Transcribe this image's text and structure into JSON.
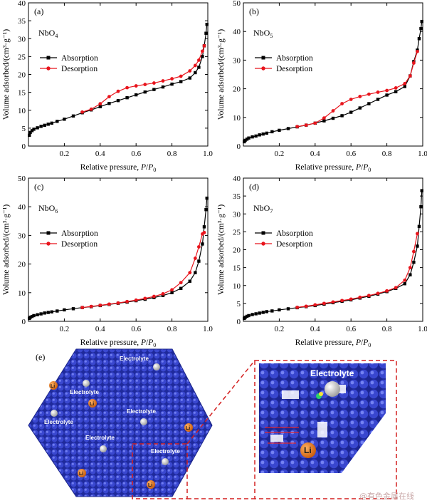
{
  "chart_data": [
    {
      "type": "line",
      "panel": "(a)",
      "label_base": "NbO",
      "label_sub": "4",
      "xlabel_prefix": "Relative pressure, ",
      "xlabel_var": "P",
      "xlabel_sep": "/",
      "xlabel_var2": "P",
      "xlabel_sub": "0",
      "ylabel": "Volume adsorbed/(cm³·g⁻¹)",
      "xlim": [
        0,
        1
      ],
      "ylim": [
        0,
        40
      ],
      "xticks": [
        "0.2",
        "0.4",
        "0.6",
        "0.8",
        "1.0"
      ],
      "yticks": [
        "0",
        "5",
        "10",
        "15",
        "20",
        "25",
        "30",
        "35",
        "40"
      ],
      "legend_position": "middle-left",
      "series": [
        {
          "name": "Absorption",
          "color": "#000000",
          "marker": "square",
          "x": [
            0.005,
            0.01,
            0.02,
            0.03,
            0.05,
            0.07,
            0.09,
            0.11,
            0.13,
            0.16,
            0.2,
            0.25,
            0.3,
            0.35,
            0.4,
            0.45,
            0.5,
            0.55,
            0.6,
            0.65,
            0.7,
            0.75,
            0.8,
            0.85,
            0.9,
            0.93,
            0.95,
            0.97,
            0.98,
            0.99,
            0.995
          ],
          "y": [
            3.0,
            3.8,
            4.3,
            4.7,
            5.1,
            5.5,
            5.8,
            6.1,
            6.4,
            6.9,
            7.5,
            8.4,
            9.3,
            10.1,
            11.0,
            11.9,
            12.7,
            13.5,
            14.3,
            15.1,
            15.8,
            16.5,
            17.3,
            18.0,
            19.0,
            20.5,
            22.0,
            25.0,
            28.0,
            31.5,
            34.0
          ]
        },
        {
          "name": "Desorption",
          "color": "#e8141c",
          "marker": "circle",
          "x": [
            0.3,
            0.35,
            0.4,
            0.45,
            0.5,
            0.55,
            0.6,
            0.65,
            0.7,
            0.75,
            0.8,
            0.85,
            0.9,
            0.93,
            0.95,
            0.97,
            0.98
          ],
          "y": [
            9.5,
            10.3,
            11.8,
            13.8,
            15.3,
            16.3,
            16.8,
            17.2,
            17.6,
            18.2,
            18.8,
            19.5,
            21.0,
            22.5,
            24.0,
            26.5,
            28.0
          ]
        }
      ]
    },
    {
      "type": "line",
      "panel": "(b)",
      "label_base": "NbO",
      "label_sub": "5",
      "xlabel_prefix": "Relative pressure, ",
      "xlabel_var": "P",
      "xlabel_sep": "/",
      "xlabel_var2": "P",
      "xlabel_sub": "0",
      "ylabel": "Volume adsorbed/(cm³·g⁻¹)",
      "xlim": [
        0,
        1
      ],
      "ylim": [
        0,
        50
      ],
      "xticks": [
        "0.2",
        "0.4",
        "0.6",
        "0.8",
        "1.0"
      ],
      "yticks": [
        "0",
        "10",
        "20",
        "30",
        "40",
        "50"
      ],
      "legend_position": "middle-left",
      "series": [
        {
          "name": "Absorption",
          "color": "#000000",
          "marker": "square",
          "x": [
            0.005,
            0.01,
            0.02,
            0.03,
            0.05,
            0.07,
            0.09,
            0.11,
            0.13,
            0.16,
            0.2,
            0.25,
            0.3,
            0.35,
            0.4,
            0.45,
            0.5,
            0.55,
            0.6,
            0.65,
            0.7,
            0.75,
            0.8,
            0.85,
            0.9,
            0.93,
            0.95,
            0.97,
            0.98,
            0.99,
            0.995
          ],
          "y": [
            1.5,
            2.0,
            2.4,
            2.8,
            3.2,
            3.5,
            3.9,
            4.2,
            4.5,
            5.0,
            5.5,
            6.1,
            6.7,
            7.3,
            8.0,
            8.8,
            9.7,
            10.6,
            11.8,
            13.3,
            14.8,
            16.3,
            17.8,
            19.0,
            20.8,
            24.5,
            29.5,
            33.5,
            37.5,
            41.0,
            43.5
          ]
        },
        {
          "name": "Desorption",
          "color": "#e8141c",
          "marker": "circle",
          "x": [
            0.3,
            0.35,
            0.4,
            0.45,
            0.5,
            0.55,
            0.6,
            0.65,
            0.7,
            0.75,
            0.8,
            0.85,
            0.9,
            0.93,
            0.95,
            0.97
          ],
          "y": [
            6.8,
            7.3,
            8.0,
            9.8,
            12.3,
            14.8,
            16.3,
            17.3,
            18.1,
            18.8,
            19.4,
            20.3,
            21.8,
            24.5,
            29.0,
            33.0
          ]
        }
      ]
    },
    {
      "type": "line",
      "panel": "(c)",
      "label_base": "NbO",
      "label_sub": "6",
      "xlabel_prefix": "Relative pressure, ",
      "xlabel_var": "P",
      "xlabel_sep": "/",
      "xlabel_var2": "P",
      "xlabel_sub": "0",
      "ylabel": "Volume adsorbed/(cm³·g⁻¹)",
      "xlim": [
        0,
        1
      ],
      "ylim": [
        0,
        50
      ],
      "xticks": [
        "0.2",
        "0.4",
        "0.6",
        "0.8",
        "1.0"
      ],
      "yticks": [
        "0",
        "10",
        "20",
        "30",
        "40",
        "50"
      ],
      "legend_position": "middle-left",
      "series": [
        {
          "name": "Absorption",
          "color": "#000000",
          "marker": "square",
          "x": [
            0.005,
            0.01,
            0.02,
            0.03,
            0.05,
            0.07,
            0.09,
            0.11,
            0.13,
            0.16,
            0.2,
            0.25,
            0.3,
            0.35,
            0.4,
            0.45,
            0.5,
            0.55,
            0.6,
            0.65,
            0.7,
            0.75,
            0.8,
            0.85,
            0.9,
            0.93,
            0.95,
            0.97,
            0.98,
            0.99,
            0.995
          ],
          "y": [
            1.0,
            1.4,
            1.7,
            2.0,
            2.3,
            2.6,
            2.9,
            3.1,
            3.3,
            3.6,
            4.0,
            4.4,
            4.8,
            5.1,
            5.5,
            5.9,
            6.3,
            6.7,
            7.2,
            7.7,
            8.3,
            9.0,
            10.0,
            11.5,
            14.0,
            17.0,
            21.0,
            27.0,
            33.0,
            39.0,
            43.0
          ]
        },
        {
          "name": "Desorption",
          "color": "#e8141c",
          "marker": "circle",
          "x": [
            0.3,
            0.35,
            0.4,
            0.45,
            0.5,
            0.55,
            0.6,
            0.65,
            0.7,
            0.75,
            0.8,
            0.85,
            0.9,
            0.93,
            0.95,
            0.97,
            0.98
          ],
          "y": [
            4.8,
            5.2,
            5.6,
            6.0,
            6.4,
            6.9,
            7.4,
            8.0,
            8.7,
            9.6,
            11.0,
            13.5,
            17.0,
            22.0,
            26.0,
            30.5,
            31.0
          ]
        }
      ]
    },
    {
      "type": "line",
      "panel": "(d)",
      "label_base": "NbO",
      "label_sub": "7",
      "xlabel_prefix": "Relative pressure, ",
      "xlabel_var": "P",
      "xlabel_sep": "/",
      "xlabel_var2": "P",
      "xlabel_sub": "0",
      "ylabel": "Volume adsorbed/(cm³·g⁻¹)",
      "xlim": [
        0,
        1
      ],
      "ylim": [
        0,
        40
      ],
      "xticks": [
        "0.2",
        "0.4",
        "0.6",
        "0.8",
        "1.0"
      ],
      "yticks": [
        "0",
        "5",
        "10",
        "15",
        "20",
        "25",
        "30",
        "35",
        "40"
      ],
      "legend_position": "middle-left",
      "series": [
        {
          "name": "Absorption",
          "color": "#000000",
          "marker": "square",
          "x": [
            0.005,
            0.01,
            0.02,
            0.03,
            0.05,
            0.07,
            0.09,
            0.11,
            0.13,
            0.16,
            0.2,
            0.25,
            0.3,
            0.35,
            0.4,
            0.45,
            0.5,
            0.55,
            0.6,
            0.65,
            0.7,
            0.75,
            0.8,
            0.85,
            0.9,
            0.93,
            0.95,
            0.97,
            0.98,
            0.99,
            0.995
          ],
          "y": [
            0.8,
            1.1,
            1.4,
            1.6,
            1.9,
            2.1,
            2.3,
            2.5,
            2.7,
            2.9,
            3.2,
            3.5,
            3.8,
            4.1,
            4.4,
            4.8,
            5.2,
            5.6,
            6.0,
            6.5,
            7.0,
            7.6,
            8.3,
            9.2,
            10.5,
            13.0,
            16.5,
            21.0,
            26.5,
            32.0,
            36.5
          ]
        },
        {
          "name": "Desorption",
          "color": "#e8141c",
          "marker": "circle",
          "x": [
            0.3,
            0.35,
            0.4,
            0.45,
            0.5,
            0.55,
            0.6,
            0.65,
            0.7,
            0.75,
            0.8,
            0.85,
            0.9,
            0.93,
            0.95,
            0.97
          ],
          "y": [
            3.9,
            4.2,
            4.6,
            5.0,
            5.4,
            5.8,
            6.2,
            6.7,
            7.2,
            7.8,
            8.5,
            9.4,
            11.5,
            15.0,
            19.5,
            24.5
          ]
        }
      ]
    }
  ],
  "scene": {
    "panel": "(e)",
    "electrolyte_label": "Electrolyte",
    "li_label": "Li",
    "li_label_small": "Li",
    "zoom_color": "#d42020",
    "crystal_color": "#2a35b8"
  },
  "watermark": "@有色金属在线"
}
